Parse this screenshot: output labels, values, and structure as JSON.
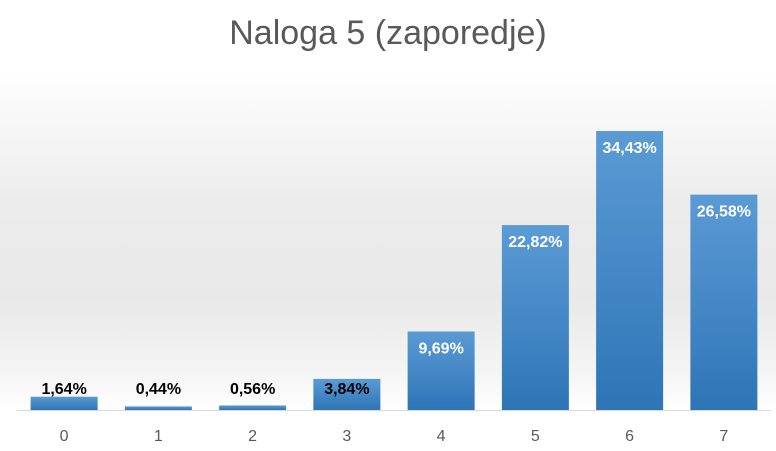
{
  "chart_data": {
    "type": "bar",
    "title": "Naloga 5 (zaporedje)",
    "categories": [
      "0",
      "1",
      "2",
      "3",
      "4",
      "5",
      "6",
      "7"
    ],
    "values": [
      1.64,
      0.44,
      0.56,
      3.84,
      9.69,
      22.82,
      34.43,
      26.58
    ],
    "data_labels": [
      "1,64%",
      "0,44%",
      "0,56%",
      "3,84%",
      "9,69%",
      "22,82%",
      "34,43%",
      "26,58%"
    ],
    "xlabel": "",
    "ylabel": "",
    "ylim": [
      0,
      40
    ],
    "grid": false,
    "legend": "none",
    "colors": {
      "bar_top": "#5b9bd5",
      "bar_bottom": "#2e75b6",
      "label_inside": "#ffffff",
      "label_outside": "#000000",
      "axis": "#d9d9d9"
    }
  }
}
